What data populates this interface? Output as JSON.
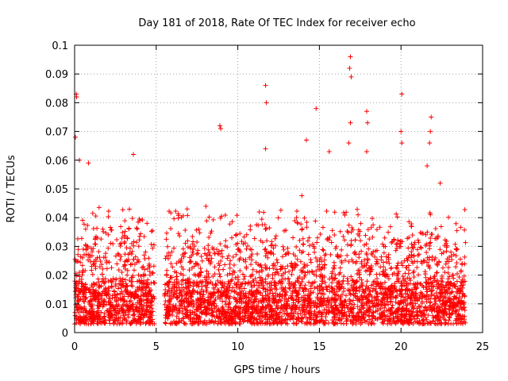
{
  "chart_data": {
    "type": "scatter",
    "title": "Day 181 of 2018, Rate Of TEC Index for receiver echo",
    "xlabel": "GPS time / hours",
    "ylabel": "ROTI / TECUs",
    "xlim": [
      0,
      25
    ],
    "ylim": [
      0,
      0.1
    ],
    "x_ticks": [
      "0",
      "5",
      "10",
      "15",
      "20",
      "25"
    ],
    "y_ticks": [
      "0",
      "0.01",
      "0.02",
      "0.03",
      "0.04",
      "0.05",
      "0.06",
      "0.07",
      "0.08",
      "0.09",
      "0.1"
    ],
    "grid": true,
    "marker": "+",
    "color": "#ff0000",
    "series": [
      {
        "x_range": [
          0,
          23.95
        ],
        "gap": [
          4.9,
          5.5
        ],
        "typical_range": [
          0.003,
          0.045
        ],
        "outliers": [
          {
            "x": 0.05,
            "y": 0.068
          },
          {
            "x": 0.1,
            "y": 0.083
          },
          {
            "x": 0.12,
            "y": 0.082
          },
          {
            "x": 0.3,
            "y": 0.06
          },
          {
            "x": 0.85,
            "y": 0.059
          },
          {
            "x": 3.6,
            "y": 0.062
          },
          {
            "x": 8.9,
            "y": 0.072
          },
          {
            "x": 8.95,
            "y": 0.071
          },
          {
            "x": 11.7,
            "y": 0.086
          },
          {
            "x": 11.75,
            "y": 0.08
          },
          {
            "x": 11.7,
            "y": 0.064
          },
          {
            "x": 14.2,
            "y": 0.067
          },
          {
            "x": 14.8,
            "y": 0.078
          },
          {
            "x": 15.6,
            "y": 0.063
          },
          {
            "x": 16.9,
            "y": 0.096
          },
          {
            "x": 16.85,
            "y": 0.092
          },
          {
            "x": 16.95,
            "y": 0.089
          },
          {
            "x": 16.9,
            "y": 0.073
          },
          {
            "x": 16.8,
            "y": 0.066
          },
          {
            "x": 17.9,
            "y": 0.077
          },
          {
            "x": 17.95,
            "y": 0.073
          },
          {
            "x": 17.9,
            "y": 0.063
          },
          {
            "x": 20.05,
            "y": 0.083
          },
          {
            "x": 20.0,
            "y": 0.07
          },
          {
            "x": 20.05,
            "y": 0.066
          },
          {
            "x": 21.85,
            "y": 0.075
          },
          {
            "x": 21.8,
            "y": 0.07
          },
          {
            "x": 21.75,
            "y": 0.066
          },
          {
            "x": 21.6,
            "y": 0.058
          },
          {
            "x": 22.4,
            "y": 0.052
          }
        ]
      }
    ]
  }
}
